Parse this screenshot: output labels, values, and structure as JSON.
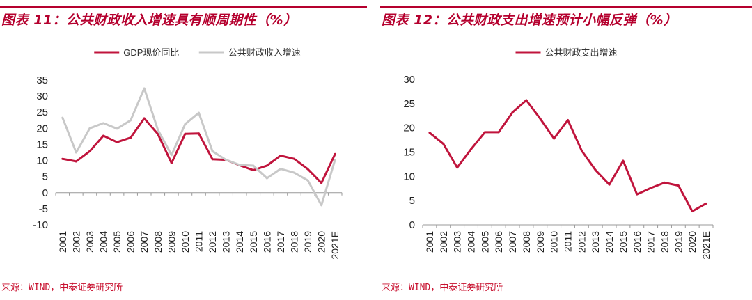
{
  "colors": {
    "accent": "#b5002e",
    "series_primary": "#c0143c",
    "series_secondary": "#c8c8c8"
  },
  "left": {
    "title": "图表 11：公共财政收入增速具有顺周期性（%）",
    "source": "来源：WIND，中泰证券研究所",
    "legend": [
      "GDP现价同比",
      "公共财政收入增速"
    ]
  },
  "right": {
    "title": "图表 12：公共财政支出增速预计小幅反弹（%）",
    "source": "来源：WIND，中泰证券研究所",
    "legend": [
      "公共财政支出增速"
    ]
  },
  "chart_data": [
    {
      "type": "line",
      "categories": [
        "2001",
        "2002",
        "2003",
        "2004",
        "2005",
        "2006",
        "2007",
        "2008",
        "2009",
        "2010",
        "2011",
        "2012",
        "2013",
        "2014",
        "2015",
        "2016",
        "2017",
        "2018",
        "2019",
        "2020",
        "2021E"
      ],
      "series": [
        {
          "name": "GDP现价同比",
          "color": "#c0143c",
          "values": [
            10.5,
            9.7,
            12.9,
            17.7,
            15.7,
            17.1,
            23.1,
            18.2,
            9.2,
            18.3,
            18.4,
            10.4,
            10.2,
            8.5,
            7.0,
            8.4,
            11.5,
            10.5,
            7.3,
            3.0,
            12.0
          ]
        },
        {
          "name": "公共财政收入增速",
          "color": "#c8c8c8",
          "values": [
            23.3,
            12.5,
            20.0,
            21.6,
            19.9,
            22.5,
            32.4,
            19.5,
            11.7,
            21.3,
            24.8,
            12.9,
            10.2,
            8.6,
            8.4,
            4.5,
            7.4,
            6.2,
            3.8,
            -3.9,
            10.2
          ]
        }
      ],
      "ylim": [
        -10,
        35
      ],
      "yticks": [
        -10,
        -5,
        0,
        5,
        10,
        15,
        20,
        25,
        30,
        35
      ],
      "legend_position": "top",
      "grid": false
    },
    {
      "type": "line",
      "categories": [
        "2001",
        "2002",
        "2003",
        "2004",
        "2005",
        "2006",
        "2007",
        "2008",
        "2009",
        "2010",
        "2011",
        "2012",
        "2013",
        "2014",
        "2015",
        "2016",
        "2017",
        "2018",
        "2019",
        "2020",
        "2021E"
      ],
      "series": [
        {
          "name": "公共财政支出增速",
          "color": "#c0143c",
          "values": [
            19.0,
            16.7,
            11.8,
            15.6,
            19.1,
            19.1,
            23.2,
            25.7,
            21.9,
            17.8,
            21.6,
            15.3,
            11.3,
            8.3,
            13.2,
            6.3,
            7.6,
            8.7,
            8.1,
            2.8,
            4.4
          ]
        }
      ],
      "ylim": [
        0,
        30
      ],
      "yticks": [
        0,
        5,
        10,
        15,
        20,
        25,
        30
      ],
      "legend_position": "top",
      "grid": false
    }
  ]
}
